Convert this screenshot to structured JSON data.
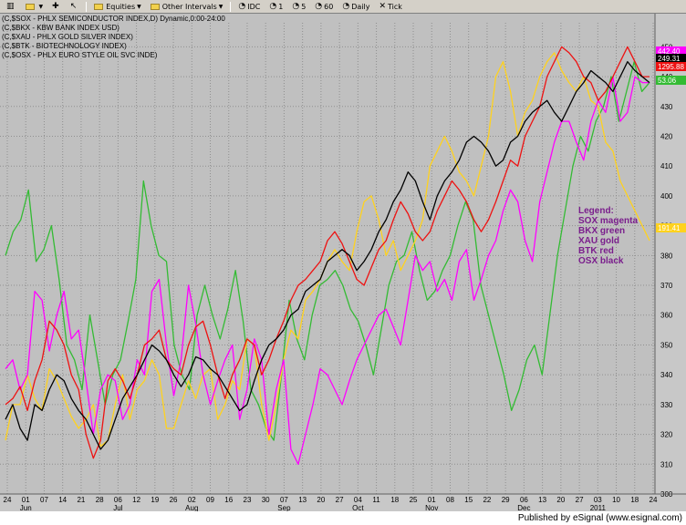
{
  "toolbar": {
    "items": [
      {
        "label": "",
        "icon": "chart-icon"
      },
      {
        "label": "",
        "icon": "folder-icon"
      },
      {
        "label": "",
        "icon": "plus-icon"
      },
      {
        "label": "",
        "icon": "cursor-icon"
      },
      {
        "label": "Equities",
        "icon": "folder-icon"
      },
      {
        "label": "Other Intervals",
        "icon": "folder-icon"
      },
      {
        "label": "IDC",
        "icon": "clock-icon"
      },
      {
        "label": "1",
        "icon": "clock-icon"
      },
      {
        "label": "5",
        "icon": "clock-icon"
      },
      {
        "label": "60",
        "icon": "clock-icon"
      },
      {
        "label": "Daily",
        "icon": "clock-icon"
      },
      {
        "label": "Tick",
        "icon": "close-icon"
      }
    ]
  },
  "chart_header": [
    "(C,$SOX - PHLX SEMICONDUCTOR INDEX,D) Dynamic,0:00-24:00",
    "(C,$BKX - KBW BANK INDEX USD)",
    "(C,$XAU - PHLX GOLD SILVER INDEX)",
    "(C,$BTK - BIOTECHNOLOGY INDEX)",
    "(C,$OSX - PHLX EURO STYLE OIL SVC INDE)"
  ],
  "legend_note": {
    "title": "Legend:",
    "lines": [
      "SOX magenta",
      "BKX green",
      "XAU gold",
      "BTK red",
      "OSX black"
    ]
  },
  "footer": {
    "text": "Published by eSignal (www.esignal.com)"
  },
  "colors": {
    "background": "#c0c0c0",
    "grid": "#8f8f8f",
    "SOX": "#ff00ff",
    "BKX": "#33bb33",
    "XAU": "#ffd21e",
    "BTK": "#ee1111",
    "OSX": "#000000"
  },
  "chart_data": {
    "type": "line",
    "x_ticks": [
      "24",
      "01",
      "07",
      "14",
      "21",
      "28",
      "06",
      "12",
      "19",
      "26",
      "02",
      "09",
      "16",
      "23",
      "30",
      "07",
      "13",
      "20",
      "27",
      "04",
      "11",
      "18",
      "25",
      "01",
      "08",
      "15",
      "22",
      "29",
      "06",
      "13",
      "20",
      "27",
      "03",
      "10",
      "18",
      "24"
    ],
    "months": [
      "Jun",
      "Jul",
      "Aug",
      "Sep",
      "Oct",
      "Nov",
      "Dec",
      "2011"
    ],
    "ylim": [
      300,
      455
    ],
    "y_ticks": [
      300,
      310,
      320,
      330,
      340,
      350,
      360,
      370,
      380,
      390,
      400,
      410,
      420,
      430,
      440,
      450
    ],
    "grid": true,
    "price_labels": [
      {
        "series": "SOX",
        "text": "442.40"
      },
      {
        "series": "OSX",
        "text": "249.31"
      },
      {
        "series": "BTK",
        "text": "1295.88"
      },
      {
        "series": "BKX",
        "text": "53.06"
      },
      {
        "series": "XAU",
        "text": "191.41"
      }
    ],
    "series": [
      {
        "name": "SOX",
        "values": [
          342,
          345,
          335,
          340,
          368,
          365,
          348,
          360,
          368,
          352,
          355,
          338,
          320,
          335,
          340,
          338,
          325,
          330,
          345,
          340,
          368,
          372,
          350,
          333,
          345,
          370,
          357,
          340,
          330,
          338,
          345,
          350,
          325,
          335,
          352,
          345,
          320,
          335,
          345,
          315,
          310,
          320,
          330,
          342,
          340,
          335,
          330,
          338,
          345,
          350,
          355,
          360,
          362,
          356,
          350,
          365,
          380,
          375,
          378,
          368,
          372,
          365,
          378,
          382,
          365,
          372,
          380,
          385,
          395,
          402,
          398,
          385,
          378,
          398,
          408,
          418,
          425,
          425,
          418,
          412,
          425,
          432,
          428,
          440,
          425,
          428,
          440,
          438,
          438
        ]
      },
      {
        "name": "BKX",
        "values": [
          380,
          388,
          392,
          402,
          378,
          382,
          390,
          372,
          350,
          345,
          335,
          360,
          345,
          330,
          340,
          345,
          358,
          372,
          405,
          390,
          380,
          378,
          350,
          340,
          335,
          360,
          370,
          360,
          352,
          362,
          375,
          358,
          335,
          330,
          322,
          318,
          340,
          365,
          352,
          345,
          360,
          370,
          372,
          375,
          370,
          362,
          358,
          350,
          340,
          355,
          370,
          378,
          380,
          388,
          375,
          365,
          368,
          375,
          380,
          390,
          398,
          392,
          370,
          360,
          350,
          340,
          328,
          335,
          345,
          350,
          340,
          360,
          380,
          395,
          410,
          420,
          415,
          425,
          430,
          440,
          425,
          435,
          445,
          435,
          438
        ]
      },
      {
        "name": "XAU",
        "values": [
          318,
          330,
          330,
          340,
          332,
          328,
          342,
          338,
          332,
          326,
          322,
          325,
          330,
          316,
          318,
          330,
          340,
          325,
          335,
          338,
          345,
          340,
          322,
          322,
          330,
          338,
          332,
          340,
          342,
          325,
          330,
          338,
          335,
          352,
          350,
          330,
          318,
          330,
          345,
          355,
          352,
          365,
          368,
          372,
          378,
          382,
          378,
          375,
          388,
          398,
          400,
          392,
          380,
          385,
          375,
          380,
          385,
          392,
          410,
          415,
          420,
          415,
          408,
          405,
          400,
          410,
          420,
          440,
          445,
          435,
          420,
          428,
          432,
          440,
          445,
          448,
          442,
          438,
          435,
          440,
          432,
          430,
          418,
          415,
          405,
          400,
          395,
          390,
          385
        ]
      },
      {
        "name": "BTK",
        "values": [
          330,
          332,
          336,
          328,
          338,
          345,
          358,
          355,
          350,
          340,
          335,
          320,
          312,
          318,
          338,
          342,
          338,
          332,
          340,
          350,
          352,
          355,
          345,
          342,
          340,
          350,
          356,
          358,
          350,
          340,
          332,
          340,
          345,
          352,
          350,
          340,
          345,
          352,
          358,
          365,
          370,
          372,
          375,
          378,
          385,
          388,
          384,
          378,
          372,
          370,
          376,
          382,
          385,
          392,
          398,
          394,
          388,
          385,
          388,
          395,
          400,
          405,
          402,
          398,
          392,
          388,
          392,
          398,
          405,
          412,
          410,
          420,
          425,
          430,
          440,
          445,
          450,
          448,
          445,
          440,
          438,
          432,
          435,
          440,
          445,
          450,
          445,
          440,
          440
        ]
      },
      {
        "name": "OSX",
        "values": [
          325,
          330,
          322,
          318,
          330,
          328,
          335,
          340,
          338,
          332,
          328,
          325,
          320,
          315,
          318,
          325,
          332,
          336,
          340,
          345,
          350,
          348,
          345,
          340,
          336,
          340,
          346,
          345,
          342,
          340,
          336,
          332,
          328,
          330,
          338,
          345,
          350,
          352,
          355,
          360,
          362,
          368,
          370,
          372,
          378,
          380,
          382,
          380,
          375,
          378,
          382,
          388,
          392,
          398,
          402,
          408,
          405,
          398,
          392,
          400,
          405,
          408,
          412,
          418,
          420,
          418,
          415,
          410,
          412,
          418,
          420,
          425,
          428,
          430,
          432,
          428,
          425,
          430,
          435,
          438,
          442,
          440,
          438,
          435,
          440,
          445,
          442,
          440,
          438
        ]
      }
    ]
  }
}
